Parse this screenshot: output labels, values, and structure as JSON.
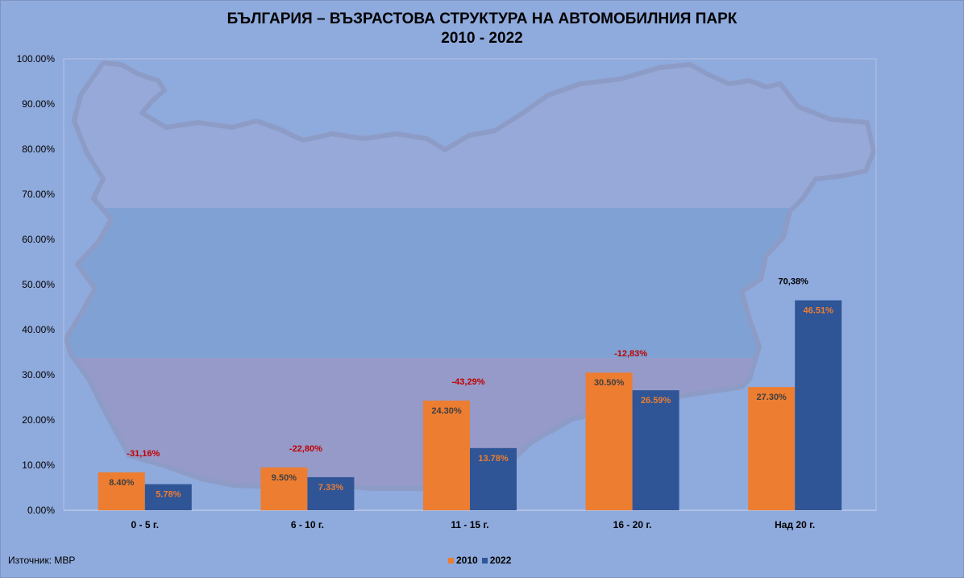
{
  "chart_data": {
    "type": "bar",
    "title_line1": "БЪЛГАРИЯ – ВЪЗРАСТОВА  СТРУКТУРА НА АВТОМОБИЛНИЯ  ПАРК",
    "title_line2": "2010 - 2022",
    "categories": [
      "0 - 5 г.",
      "6 - 10 г.",
      "11 - 15 г.",
      "16 - 20 г.",
      "Над 20 г."
    ],
    "series": [
      {
        "name": "2010",
        "color": "#ed7d31",
        "values": [
          8.4,
          9.5,
          24.3,
          30.5,
          27.3
        ],
        "labels": [
          "8.40%",
          "9.50%",
          "24.30%",
          "30.50%",
          "27.30%"
        ],
        "label_color": "#404040"
      },
      {
        "name": "2022",
        "color": "#2f5597",
        "values": [
          5.78,
          7.33,
          13.78,
          26.59,
          46.51
        ],
        "labels": [
          "5.78%",
          "7.33%",
          "13.78%",
          "26.59%",
          "46.51%"
        ],
        "label_color": "#ed7d31"
      }
    ],
    "changes": [
      {
        "text": "-31,16%",
        "color": "#c00000"
      },
      {
        "text": "-22,80%",
        "color": "#c00000"
      },
      {
        "text": "-43,29%",
        "color": "#c00000"
      },
      {
        "text": "-12,83%",
        "color": "#c00000"
      },
      {
        "text": "70,38%",
        "color": "#000000"
      }
    ],
    "ylim": [
      0,
      100
    ],
    "yticks": [
      "0.00%",
      "10.00%",
      "20.00%",
      "30.00%",
      "40.00%",
      "50.00%",
      "60.00%",
      "70.00%",
      "80.00%",
      "90.00%",
      "100.00%"
    ],
    "legend_position": "bottom",
    "grid": false
  },
  "source_note": "Източник: МВР"
}
